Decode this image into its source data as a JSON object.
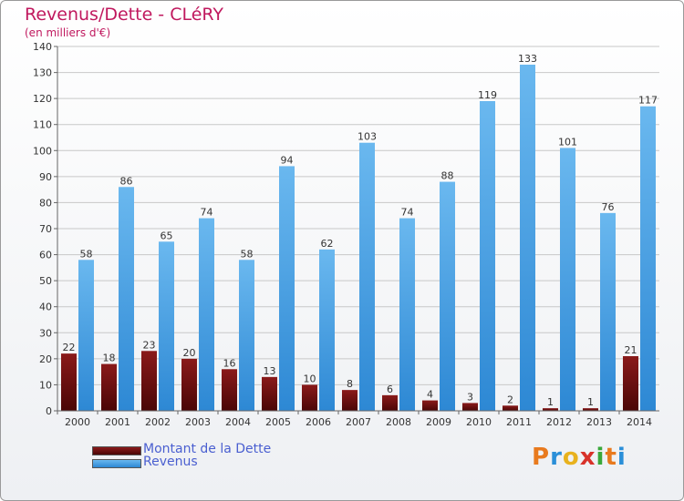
{
  "header": {
    "title": "Revenus/Dette - CLéRY",
    "subtitle": "(en milliers d'€)"
  },
  "legend": {
    "dette_label": "Montant de la Dette",
    "revenus_label": "Revenus"
  },
  "logo": {
    "text": "Proxiti",
    "colors": [
      "#e87a1e",
      "#2a8fd8",
      "#e8b21e",
      "#d8322a",
      "#3aa83a",
      "#e87a1e",
      "#2a8fd8"
    ]
  },
  "colors": {
    "dette_top": "#8a1a1a",
    "dette_bottom": "#4a0606",
    "revenus_top": "#6ab8ef",
    "revenus_bottom": "#2d88d4",
    "title": "#c0185e"
  },
  "chart_data": {
    "type": "bar",
    "categories": [
      "2000",
      "2001",
      "2002",
      "2003",
      "2004",
      "2005",
      "2006",
      "2007",
      "2008",
      "2009",
      "2010",
      "2011",
      "2012",
      "2013",
      "2014"
    ],
    "series": [
      {
        "name": "Montant de la Dette",
        "values": [
          22,
          18,
          23,
          20,
          16,
          13,
          10,
          8,
          6,
          4,
          3,
          2,
          1,
          1,
          21
        ]
      },
      {
        "name": "Revenus",
        "values": [
          58,
          86,
          65,
          74,
          58,
          94,
          62,
          103,
          74,
          88,
          119,
          133,
          101,
          76,
          117
        ]
      }
    ],
    "yticks": [
      0,
      10,
      20,
      30,
      40,
      50,
      60,
      70,
      80,
      90,
      100,
      110,
      120,
      130,
      140
    ],
    "ylim": [
      0,
      140
    ],
    "grid": true
  }
}
